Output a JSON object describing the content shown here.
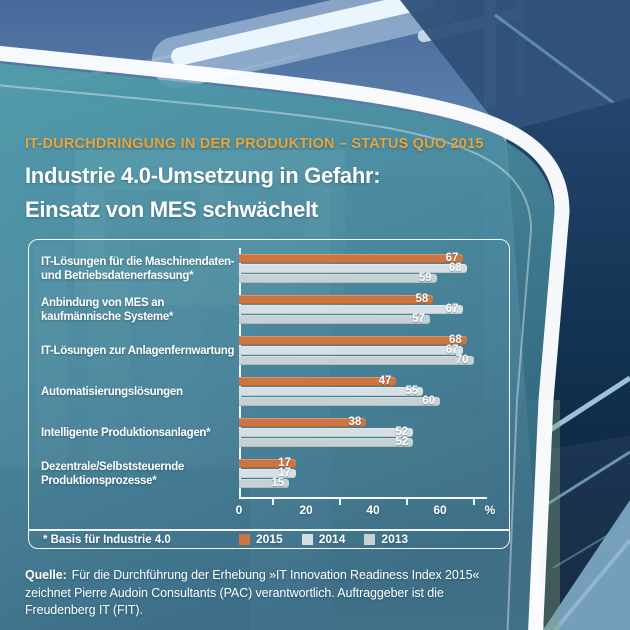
{
  "header": {
    "kicker": "IT-DURCHDRINGUNG IN DER PRODUKTION – STATUS QUO 2015",
    "title_line1": "Industrie 4.0-Umsetzung in Gefahr:",
    "title_line2": "Einsatz von MES schwächelt"
  },
  "colors": {
    "accent_orange": "#e9a43e",
    "bar_2015": "#cd7540",
    "bar_2014": "#d5dfe4",
    "bar_2013": "#c6d1d4",
    "panel_teal": "#47899c",
    "panel_blue": "#336681"
  },
  "chart_data": {
    "type": "bar",
    "orientation": "horizontal",
    "categories": [
      [
        "IT-Lösungen für die Maschinendaten-",
        "und Betriebsdatenerfassung*"
      ],
      [
        "Anbindung von MES an",
        "kaufmännische Systeme*"
      ],
      [
        "IT-Lösungen zur Anlagenfernwartung"
      ],
      [
        "Automatisierungslösungen"
      ],
      [
        "Intelligente Produktionsanlagen*"
      ],
      [
        "Dezentrale/Selbststeuernde",
        "Produktionsprozesse*"
      ]
    ],
    "series": [
      {
        "name": "2015",
        "color": "#cd7540",
        "values": [
          67,
          58,
          68,
          47,
          38,
          17
        ]
      },
      {
        "name": "2014",
        "color": "#d5dfe4",
        "values": [
          68,
          67,
          67,
          55,
          52,
          17
        ]
      },
      {
        "name": "2013",
        "color": "#c6d1d4",
        "values": [
          59,
          57,
          70,
          60,
          52,
          15
        ]
      }
    ],
    "xlim": [
      0,
      75
    ],
    "axis": {
      "tick_marks": [
        10,
        30,
        50,
        70
      ],
      "tick_labels": [
        0,
        20,
        40,
        60
      ],
      "unit": "%"
    },
    "values_in_percent": true,
    "legend_position": "bottom",
    "footnote": "* Basis für Industrie 4.0"
  },
  "source": {
    "label": "Quelle:",
    "line1": "Für die Durchführung der Erhebung »IT Innovation Readiness Index 2015«",
    "line2": "zeichnet Pierre Audoin Consultants (PAC) verantwortlich. Auftraggeber ist die",
    "line3": "Freudenberg IT (FIT)."
  }
}
